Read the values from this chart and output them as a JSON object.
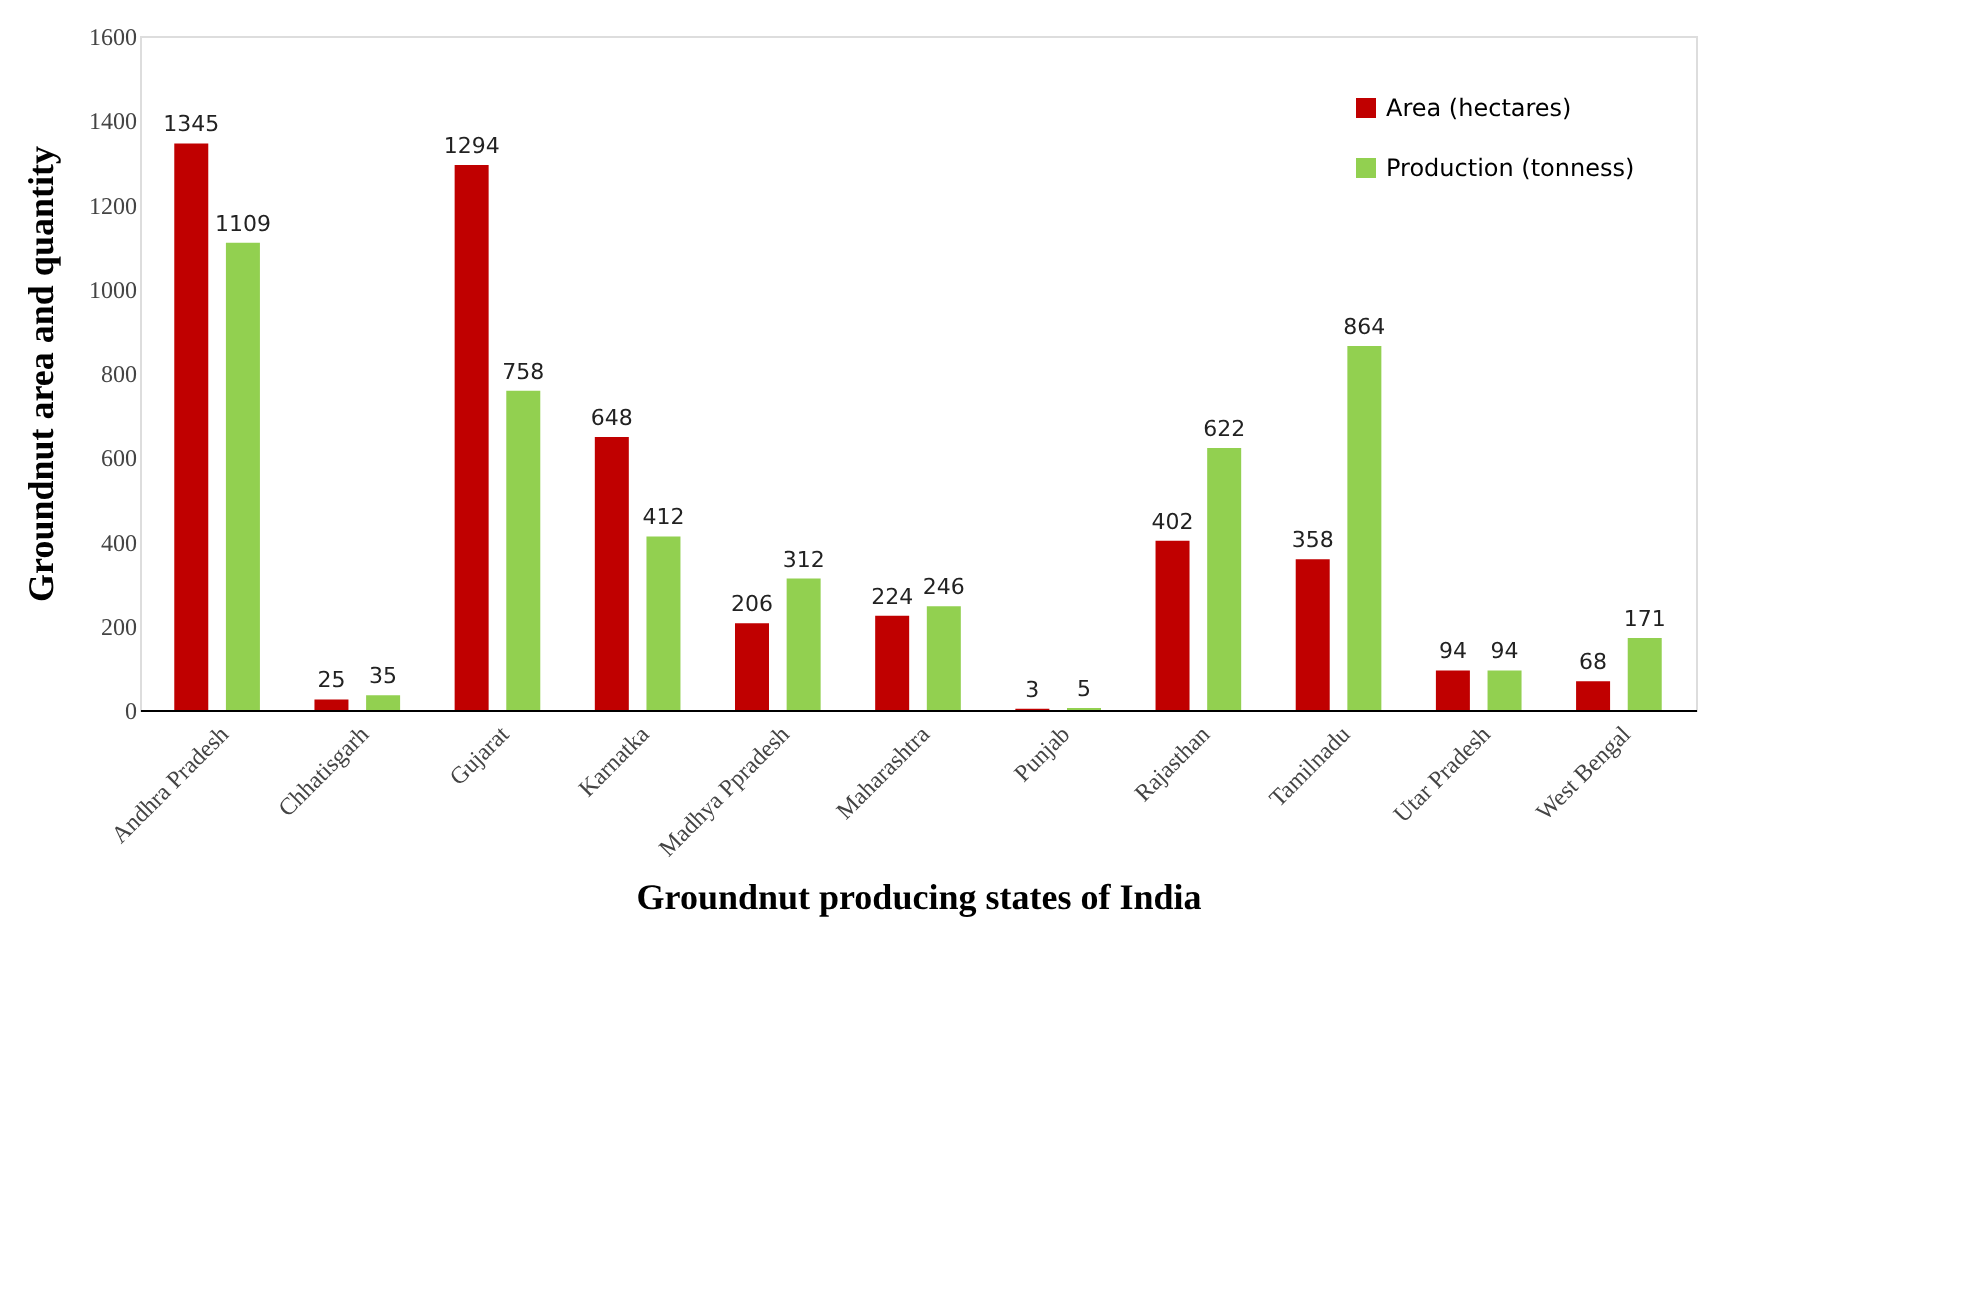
{
  "chart_data": {
    "type": "bar",
    "xlabel": "Groundnut producing states of India",
    "ylabel": "Groundnut area and quantity",
    "categories": [
      "Andhra Pradesh",
      "Chhatisgarh",
      "Gujarat",
      "Karnatka",
      "Madhya Ppradesh",
      "Maharashtra",
      "Punjab",
      "Rajasthan",
      "Tamilnadu",
      "Utar Pradesh",
      "West Bengal"
    ],
    "series": [
      {
        "name": "Area (hectares)",
        "color": "#c00000",
        "values": [
          1345,
          25,
          1294,
          648,
          206,
          224,
          3,
          402,
          358,
          94,
          68
        ]
      },
      {
        "name": "Production (tonness)",
        "color": "#92d050",
        "values": [
          1109,
          35,
          758,
          412,
          312,
          246,
          5,
          622,
          864,
          94,
          171
        ]
      }
    ],
    "ylim": [
      0,
      1600
    ],
    "yticks": [
      0,
      200,
      400,
      600,
      800,
      1000,
      1200,
      1400,
      1600
    ],
    "grid": false,
    "legend": "top right",
    "data_labels": true
  }
}
